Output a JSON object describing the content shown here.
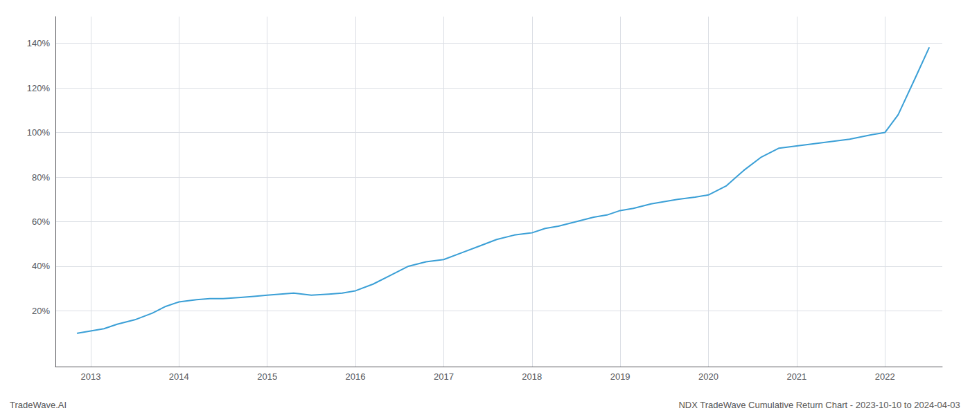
{
  "chart_data": {
    "type": "line",
    "x": [
      2012.85,
      2013.0,
      2013.15,
      2013.3,
      2013.5,
      2013.7,
      2013.85,
      2014.0,
      2014.2,
      2014.35,
      2014.5,
      2014.7,
      2014.85,
      2015.0,
      2015.15,
      2015.3,
      2015.5,
      2015.7,
      2015.85,
      2016.0,
      2016.2,
      2016.4,
      2016.6,
      2016.8,
      2017.0,
      2017.2,
      2017.4,
      2017.6,
      2017.8,
      2018.0,
      2018.15,
      2018.3,
      2018.5,
      2018.7,
      2018.85,
      2019.0,
      2019.15,
      2019.35,
      2019.5,
      2019.65,
      2019.85,
      2020.0,
      2020.2,
      2020.4,
      2020.6,
      2020.8,
      2021.0,
      2021.2,
      2021.4,
      2021.6,
      2021.85,
      2022.0,
      2022.15,
      2022.35,
      2022.5
    ],
    "values": [
      10,
      11,
      12,
      14,
      16,
      19,
      22,
      24,
      25,
      25.5,
      25.5,
      26,
      26.5,
      27,
      27.5,
      28,
      27,
      27.5,
      28,
      29,
      32,
      36,
      40,
      42,
      43,
      46,
      49,
      52,
      54,
      55,
      57,
      58,
      60,
      62,
      63,
      65,
      66,
      68,
      69,
      70,
      71,
      72,
      76,
      83,
      89,
      93,
      94,
      95,
      96,
      97,
      99,
      100,
      108,
      125,
      138
    ],
    "color": "#3a9fd6",
    "xlim": [
      2012.6,
      2022.65
    ],
    "ylim": [
      -5,
      152
    ],
    "xticks": [
      2013,
      2014,
      2015,
      2016,
      2017,
      2018,
      2019,
      2020,
      2021,
      2022
    ],
    "yticks": [
      {
        "value": 20,
        "label": "20%"
      },
      {
        "value": 40,
        "label": "40%"
      },
      {
        "value": 60,
        "label": "60%"
      },
      {
        "value": 80,
        "label": "80%"
      },
      {
        "value": 100,
        "label": "100%"
      },
      {
        "value": 120,
        "label": "120%"
      },
      {
        "value": 140,
        "label": "140%"
      }
    ],
    "grid": true,
    "annotations": [
      "TradeWave.AI",
      "NDX TradeWave Cumulative Return Chart - 2023-10-10 to 2024-04-03"
    ]
  }
}
